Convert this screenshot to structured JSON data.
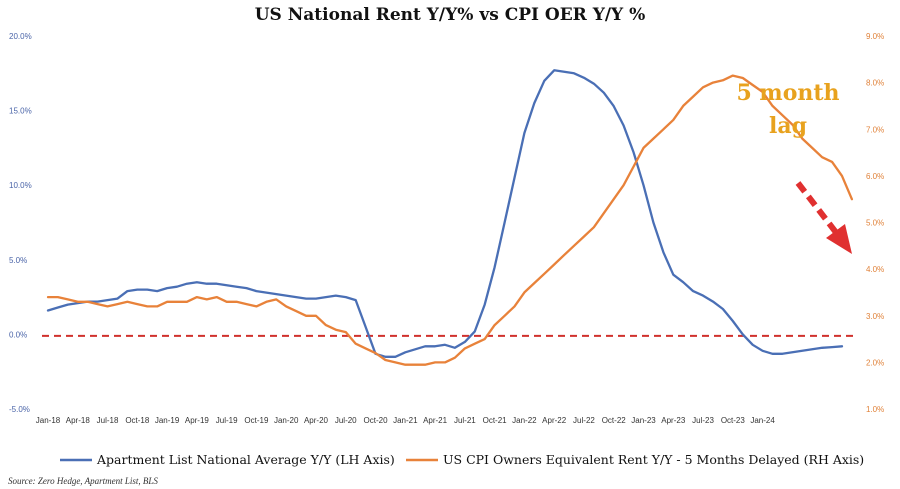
{
  "chart_data": {
    "type": "line",
    "title": "US National Rent Y/Y% vs CPI OER Y/Y %",
    "source": "Source: Zero Hedge, Apartment List, BLS",
    "annotation": [
      "5 month",
      "lag"
    ],
    "colors": {
      "series_left": "#4a6fb5",
      "series_right": "#e8823a",
      "reference": "#d0312d",
      "annotation": "#e8a21e",
      "arrow": "#e03030"
    },
    "y_left": {
      "min": -5.0,
      "max": 20.0,
      "ticks": [
        "20.0%",
        "15.0%",
        "10.0%",
        "5.0%",
        "0.0%",
        "-5.0%"
      ]
    },
    "y_right": {
      "min": 1.0,
      "max": 9.0,
      "ticks": [
        "9.0%",
        "8.0%",
        "7.0%",
        "6.0%",
        "5.0%",
        "4.0%",
        "3.0%",
        "2.0%",
        "1.0%"
      ]
    },
    "x_ticks": [
      "Jan-18",
      "Apr-18",
      "Jul-18",
      "Oct-18",
      "Jan-19",
      "Apr-19",
      "Jul-19",
      "Oct-19",
      "Jan-20",
      "Apr-20",
      "Jul-20",
      "Oct-20",
      "Jan-21",
      "Apr-21",
      "Jul-21",
      "Oct-21",
      "Jan-22",
      "Apr-22",
      "Jul-22",
      "Oct-22",
      "Jan-23",
      "Apr-23",
      "Jul-23",
      "Oct-23",
      "Jan-24"
    ],
    "reference_line": {
      "axis": "left",
      "value": -0.1
    },
    "series": [
      {
        "name": "Apartment List  National Average Y/Y (LH Axis)",
        "axis": "left",
        "values": [
          1.6,
          1.8,
          2.0,
          2.1,
          2.2,
          2.2,
          2.3,
          2.4,
          2.9,
          3.0,
          3.0,
          2.9,
          3.1,
          3.2,
          3.4,
          3.5,
          3.4,
          3.4,
          3.3,
          3.2,
          3.1,
          2.9,
          2.8,
          2.7,
          2.6,
          2.5,
          2.4,
          2.4,
          2.5,
          2.6,
          2.5,
          2.3,
          0.5,
          -1.3,
          -1.5,
          -1.5,
          -1.2,
          -1.0,
          -0.8,
          -0.8,
          -0.7,
          -0.9,
          -0.5,
          0.2,
          2.0,
          4.5,
          7.5,
          10.5,
          13.5,
          15.5,
          17.0,
          17.7,
          17.6,
          17.5,
          17.2,
          16.8,
          16.2,
          15.3,
          14.0,
          12.2,
          10.0,
          7.5,
          5.5,
          4.0,
          3.5,
          2.9,
          2.6,
          2.2,
          1.7,
          0.9,
          0.0,
          -0.7,
          -1.1,
          -1.3,
          -1.3,
          -1.2,
          -1.1,
          -1.0,
          -0.9,
          -0.85,
          -0.8
        ]
      },
      {
        "name": "US CPI Owners Equivalent Rent Y/Y - 5 Months Delayed (RH Axis)",
        "axis": "right",
        "values": [
          3.4,
          3.4,
          3.35,
          3.3,
          3.3,
          3.25,
          3.2,
          3.25,
          3.3,
          3.25,
          3.2,
          3.2,
          3.3,
          3.3,
          3.3,
          3.4,
          3.35,
          3.4,
          3.3,
          3.3,
          3.25,
          3.2,
          3.3,
          3.35,
          3.2,
          3.1,
          3.0,
          3.0,
          2.8,
          2.7,
          2.65,
          2.4,
          2.3,
          2.2,
          2.05,
          2.0,
          1.95,
          1.95,
          1.95,
          2.0,
          2.0,
          2.1,
          2.3,
          2.4,
          2.5,
          2.8,
          3.0,
          3.2,
          3.5,
          3.7,
          3.9,
          4.1,
          4.3,
          4.5,
          4.7,
          4.9,
          5.2,
          5.5,
          5.8,
          6.2,
          6.6,
          6.8,
          7.0,
          7.2,
          7.5,
          7.7,
          7.9,
          8.0,
          8.05,
          8.15,
          8.1,
          7.95,
          7.8,
          7.5,
          7.3,
          7.1,
          6.8,
          6.6,
          6.4,
          6.3,
          6.0,
          5.5
        ]
      }
    ]
  }
}
